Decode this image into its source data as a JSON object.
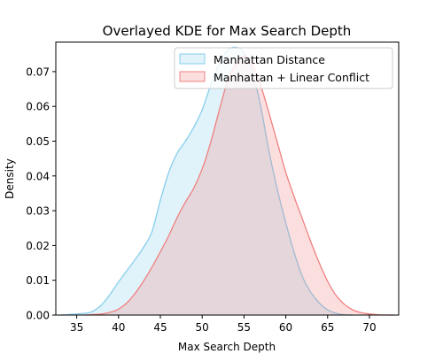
{
  "chart_data": {
    "type": "area",
    "title": "Overlayed KDE for Max Search Depth",
    "xlabel": "Max Search Depth",
    "ylabel": "Density",
    "xlim": [
      32.5,
      73.5
    ],
    "ylim": [
      0,
      0.0785
    ],
    "xticks": [
      35,
      40,
      45,
      50,
      55,
      60,
      65,
      70
    ],
    "yticks": [
      0.0,
      0.01,
      0.02,
      0.03,
      0.04,
      0.05,
      0.06,
      0.07
    ],
    "ytick_labels": [
      "0.00",
      "0.01",
      "0.02",
      "0.03",
      "0.04",
      "0.05",
      "0.06",
      "0.07"
    ],
    "legend_position": "top-right",
    "grid": false,
    "series": [
      {
        "name": "Manhattan Distance",
        "line_color": "#87CEEB",
        "fill_color": "#87CEEB",
        "x": [
          33,
          36,
          37,
          38,
          39,
          40,
          41,
          42,
          43,
          44,
          45,
          46,
          47,
          48,
          49,
          50,
          51,
          52,
          53,
          54,
          55,
          56,
          57,
          58,
          59,
          60,
          61,
          62,
          63,
          64,
          65,
          66,
          67,
          68
        ],
        "y": [
          0.0,
          0.0005,
          0.0012,
          0.003,
          0.006,
          0.0095,
          0.0128,
          0.016,
          0.0195,
          0.024,
          0.033,
          0.041,
          0.0465,
          0.05,
          0.054,
          0.059,
          0.066,
          0.072,
          0.076,
          0.077,
          0.0755,
          0.07,
          0.06,
          0.047,
          0.036,
          0.0265,
          0.018,
          0.011,
          0.0065,
          0.0035,
          0.0015,
          0.0005,
          0.0001,
          0.0
        ]
      },
      {
        "name": "Manhattan + Linear Conflict",
        "line_color": "#F08080",
        "fill_color": "#F08080",
        "x": [
          36,
          38,
          39,
          40,
          41,
          42,
          43,
          44,
          45,
          46,
          47,
          48,
          49,
          50,
          51,
          52,
          53,
          54,
          55,
          56,
          57,
          58,
          59,
          60,
          61,
          62,
          63,
          64,
          65,
          66,
          67,
          68,
          69,
          70,
          71,
          72,
          73
        ],
        "y": [
          0.0,
          0.0003,
          0.0008,
          0.0017,
          0.0035,
          0.0063,
          0.0098,
          0.0138,
          0.0182,
          0.0228,
          0.028,
          0.0325,
          0.0365,
          0.042,
          0.0495,
          0.0585,
          0.067,
          0.072,
          0.0745,
          0.072,
          0.066,
          0.058,
          0.0495,
          0.041,
          0.034,
          0.0275,
          0.021,
          0.015,
          0.0097,
          0.0057,
          0.0031,
          0.0015,
          0.0007,
          0.0003,
          0.0001,
          3e-05,
          0.0
        ]
      }
    ]
  }
}
